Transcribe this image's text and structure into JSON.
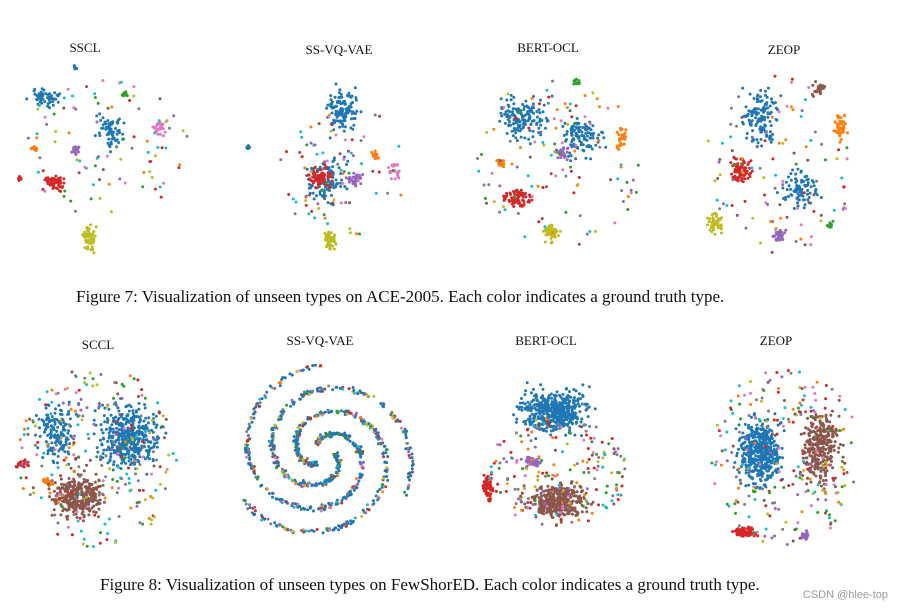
{
  "figure7": {
    "caption": "Figure 7: Visualization of unseen types on ACE-2005. Each color indicates a ground truth type.",
    "panels": [
      {
        "title": "SSCL"
      },
      {
        "title": "SS-VQ-VAE"
      },
      {
        "title": "BERT-OCL"
      },
      {
        "title": "ZEOP"
      }
    ]
  },
  "figure8": {
    "caption": "Figure 8: Visualization of unseen types on FewShorED. Each color indicates a ground truth type.",
    "panels": [
      {
        "title": "SCCL"
      },
      {
        "title": "SS-VQ-VAE"
      },
      {
        "title": "BERT-OCL"
      },
      {
        "title": "ZEOP"
      }
    ]
  },
  "watermark": "CSDN @hlee-top",
  "colors": [
    "#1f77b4",
    "#d62728",
    "#bcbd22",
    "#9467bd",
    "#ff7f0e",
    "#2ca02c",
    "#8c564b",
    "#e377c2",
    "#7f7f7f",
    "#17becf"
  ]
}
